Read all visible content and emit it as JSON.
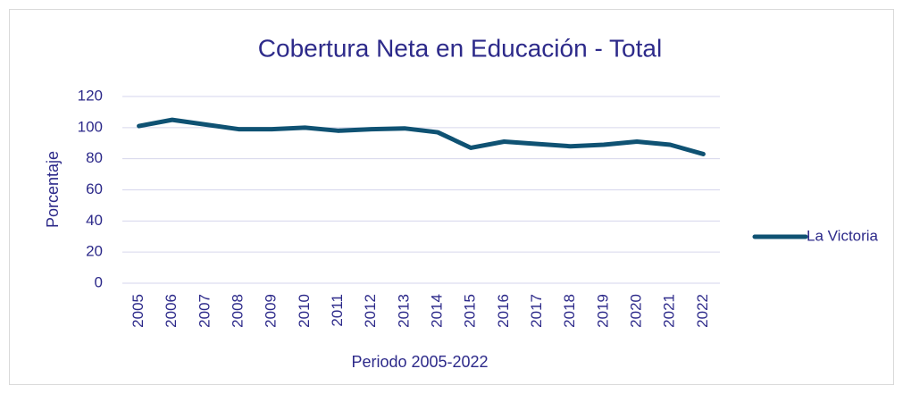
{
  "chart_data": {
    "type": "line",
    "title": "Cobertura Neta en Educación - Total",
    "x_label": "Periodo 2005-2022",
    "y_label": "Porcentaje",
    "categories": [
      "2005",
      "2006",
      "2007",
      "2008",
      "2009",
      "2010",
      "2011",
      "2012",
      "2013",
      "2014",
      "2015",
      "2016",
      "2017",
      "2018",
      "2019",
      "2020",
      "2021",
      "2022"
    ],
    "series": [
      {
        "name": "La Victoria",
        "color": "#0f5273",
        "values": [
          101,
          105,
          102,
          99,
          99,
          100,
          98,
          99,
          99.5,
          97,
          87,
          91,
          89.5,
          88,
          89,
          91,
          89,
          83
        ]
      }
    ],
    "ylim": [
      0,
      120
    ],
    "yticks": [
      0,
      20,
      40,
      60,
      80,
      100,
      120
    ],
    "grid": true,
    "legend": "right"
  }
}
